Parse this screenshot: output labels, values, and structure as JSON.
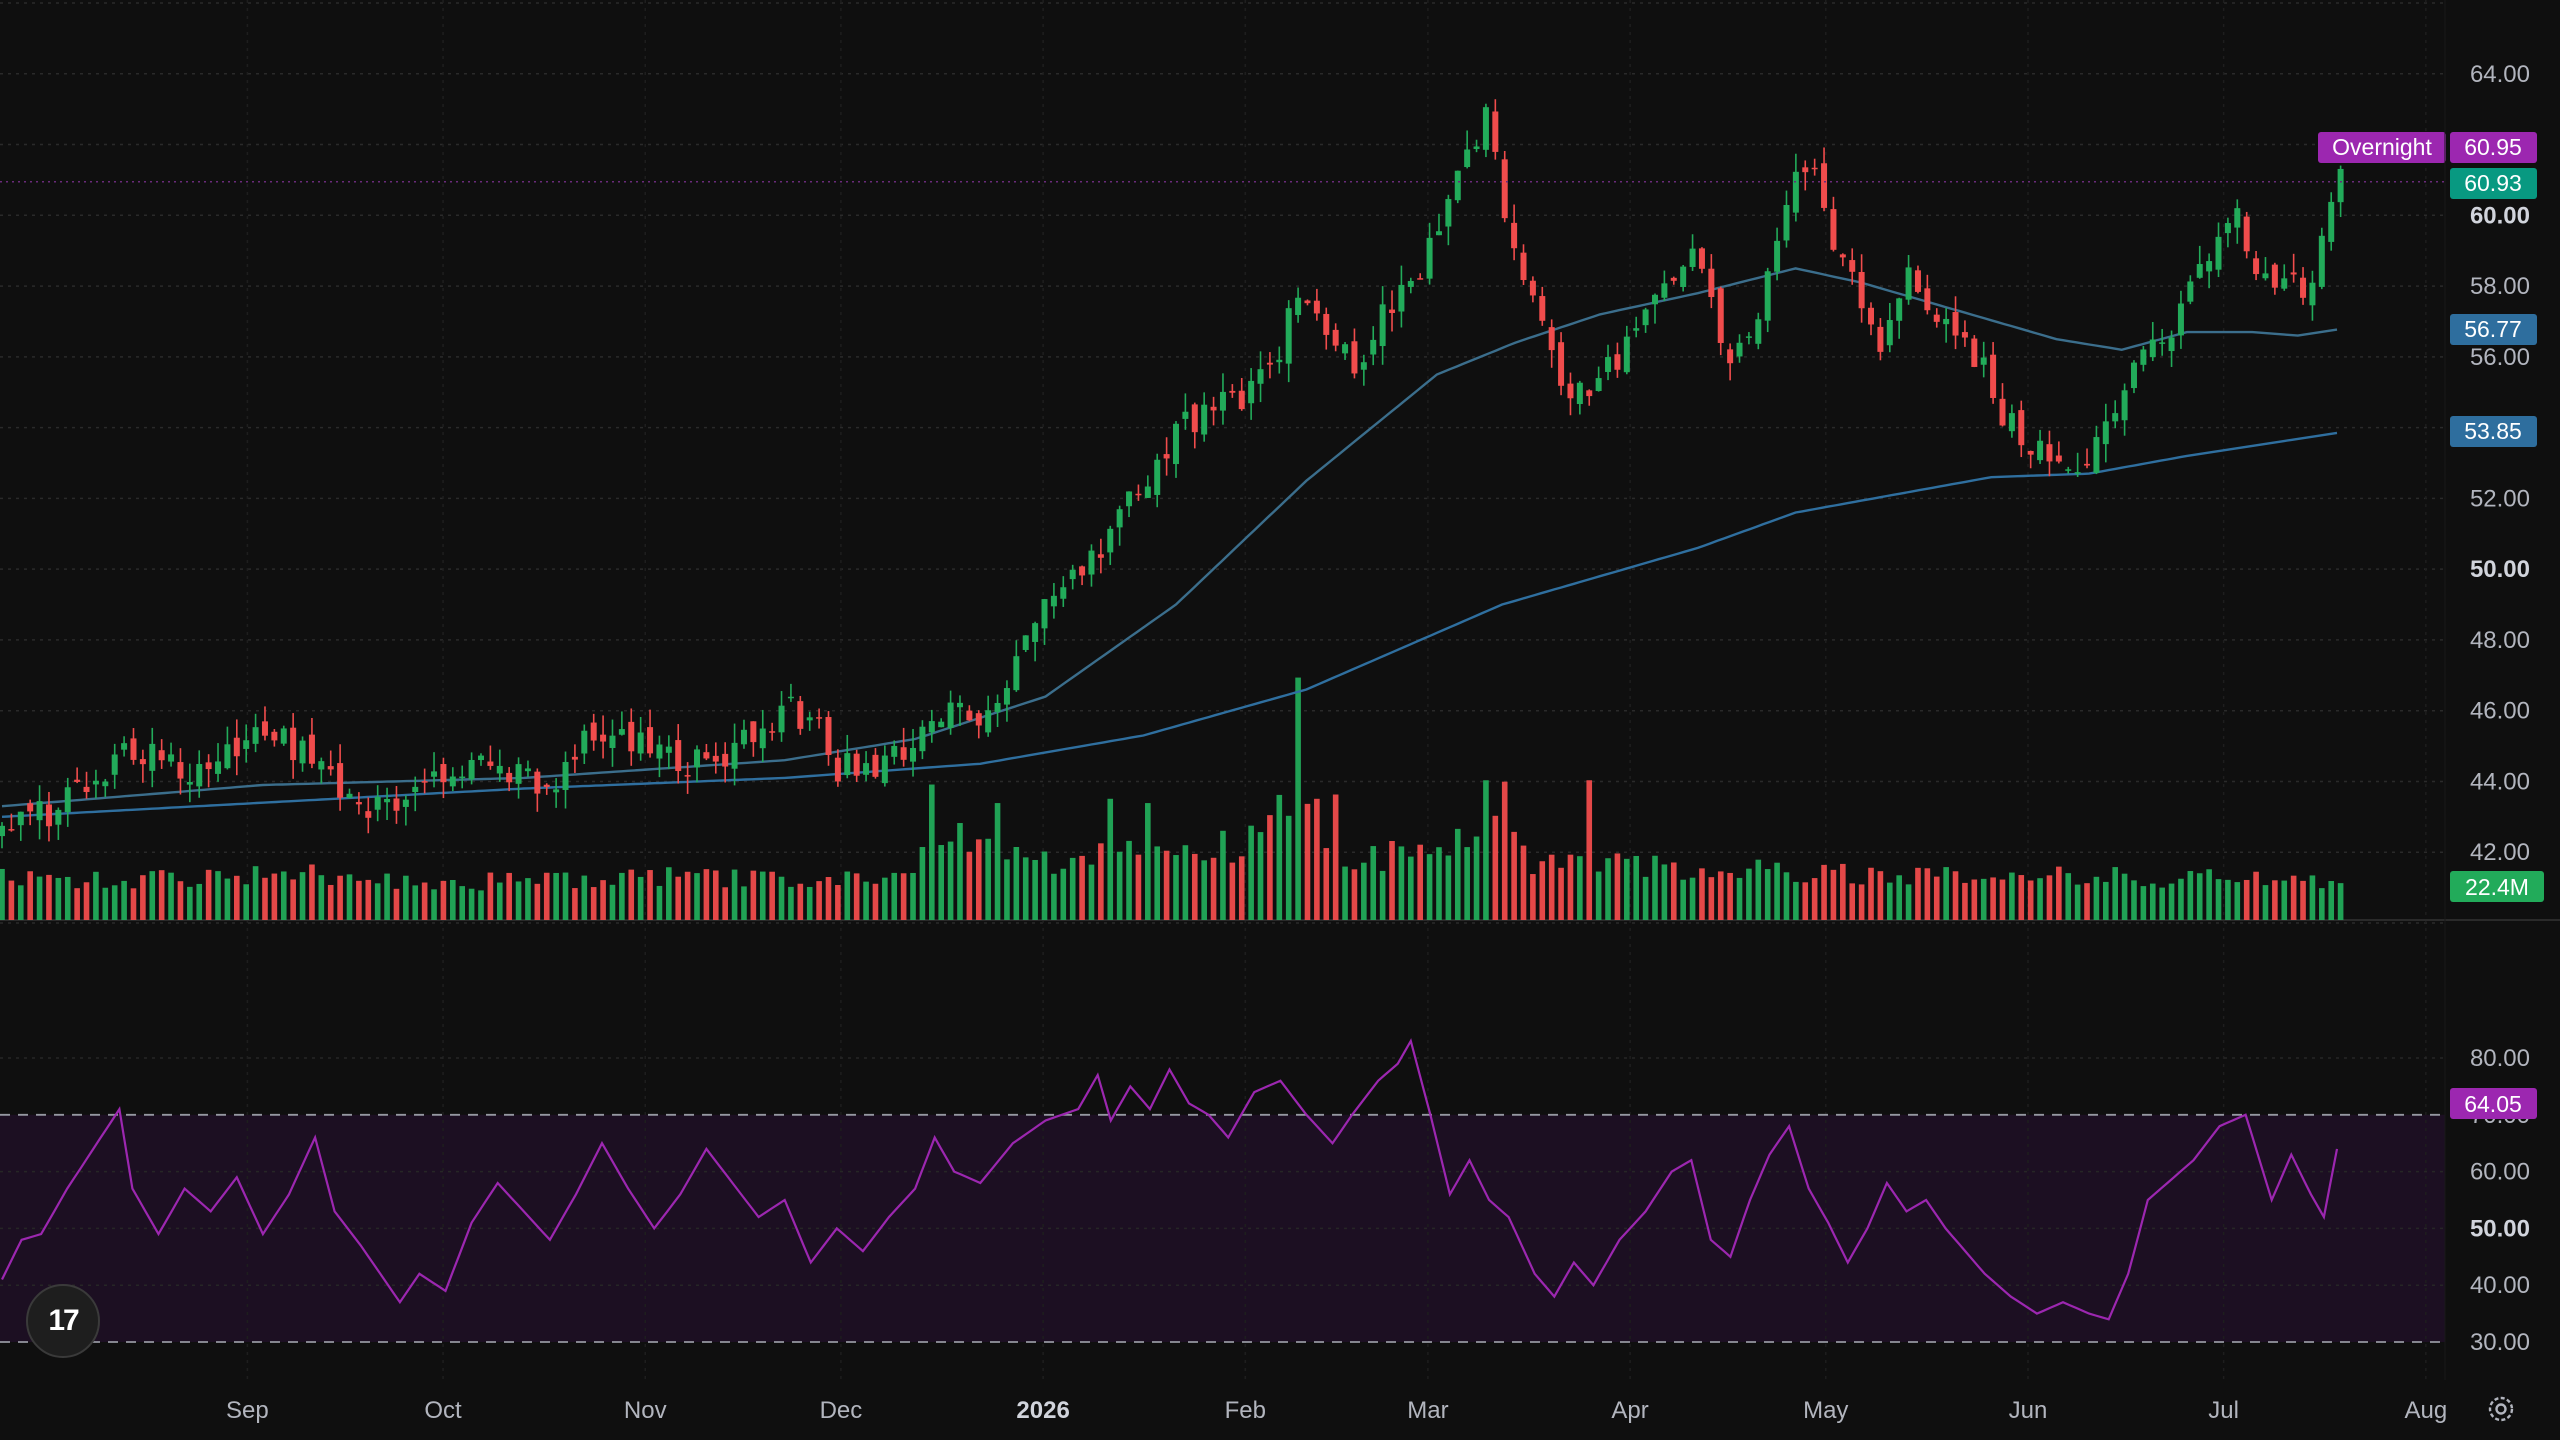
{
  "chart_data": {
    "type": "candlestick",
    "price_axis": {
      "ticks": [
        "42.00",
        "44.00",
        "46.00",
        "48.00",
        "50.00",
        "52.00",
        "54.00",
        "56.00",
        "58.00",
        "60.00",
        "62.00",
        "64.00"
      ],
      "bold_ticks": [
        "50.00",
        "60.00"
      ],
      "range": [
        40,
        66
      ]
    },
    "time_axis": {
      "labels": [
        {
          "label": "Sep",
          "day": 18
        },
        {
          "label": "Oct",
          "day": 48
        },
        {
          "label": "Nov",
          "day": 79
        },
        {
          "label": "Dec",
          "day": 109
        },
        {
          "label": "2026",
          "day": 140,
          "bold": true
        },
        {
          "label": "Feb",
          "day": 171
        },
        {
          "label": "Mar",
          "day": 199
        },
        {
          "label": "Apr",
          "day": 230
        },
        {
          "label": "May",
          "day": 260
        },
        {
          "label": "Jun",
          "day": 291
        },
        {
          "label": "Jul",
          "day": 321
        },
        {
          "label": "Aug",
          "day": 352
        }
      ],
      "day_range": [
        0,
        360
      ]
    },
    "price_path": [
      [
        0,
        42.6
      ],
      [
        10,
        43.4
      ],
      [
        20,
        45.0
      ],
      [
        30,
        44.3
      ],
      [
        40,
        45.5
      ],
      [
        50,
        44.5
      ],
      [
        55,
        43.0
      ],
      [
        62,
        43.5
      ],
      [
        70,
        44.4
      ],
      [
        78,
        44.3
      ],
      [
        84,
        43.6
      ],
      [
        90,
        45.6
      ],
      [
        100,
        45.0
      ],
      [
        108,
        44.4
      ],
      [
        115,
        45.3
      ],
      [
        120,
        46.1
      ],
      [
        125,
        45.7
      ],
      [
        128,
        44.4
      ],
      [
        134,
        44.3
      ],
      [
        140,
        45.0
      ],
      [
        143,
        45.6
      ],
      [
        145,
        46.5
      ],
      [
        150,
        45.9
      ],
      [
        155,
        47.0
      ],
      [
        160,
        48.8
      ],
      [
        165,
        50.0
      ],
      [
        170,
        51.0
      ],
      [
        175,
        52.5
      ],
      [
        180,
        54.0
      ],
      [
        184,
        54.3
      ],
      [
        190,
        54.8
      ],
      [
        195,
        55.5
      ],
      [
        198,
        57.4
      ],
      [
        204,
        56.6
      ],
      [
        208,
        55.6
      ],
      [
        212,
        57.3
      ],
      [
        218,
        58.7
      ],
      [
        224,
        61.5
      ],
      [
        228,
        62.8
      ],
      [
        230,
        60.8
      ],
      [
        232,
        58.6
      ],
      [
        235,
        57.2
      ],
      [
        238,
        55.8
      ],
      [
        240,
        54.5
      ],
      [
        244,
        55.2
      ],
      [
        248,
        56.0
      ],
      [
        252,
        57.3
      ],
      [
        256,
        58.2
      ],
      [
        260,
        59.0
      ],
      [
        262,
        58.0
      ],
      [
        265,
        55.7
      ],
      [
        270,
        57.5
      ],
      [
        275,
        60.8
      ],
      [
        278,
        61.0
      ],
      [
        282,
        58.7
      ],
      [
        285,
        57.4
      ],
      [
        288,
        56.4
      ],
      [
        292,
        58.2
      ],
      [
        296,
        57.5
      ],
      [
        300,
        56.5
      ],
      [
        304,
        55.5
      ],
      [
        308,
        54.0
      ],
      [
        312,
        53.5
      ],
      [
        316,
        53.2
      ],
      [
        320,
        53.0
      ],
      [
        324,
        54.8
      ],
      [
        330,
        56.4
      ],
      [
        334,
        57.2
      ],
      [
        338,
        58.8
      ],
      [
        342,
        60.3
      ],
      [
        346,
        58.0
      ],
      [
        350,
        58.5
      ],
      [
        354,
        57.5
      ],
      [
        356,
        59.8
      ],
      [
        358,
        60.93
      ]
    ],
    "sma_short": [
      [
        0,
        43.3
      ],
      [
        40,
        43.9
      ],
      [
        80,
        44.1
      ],
      [
        120,
        44.6
      ],
      [
        140,
        45.2
      ],
      [
        160,
        46.4
      ],
      [
        180,
        49.0
      ],
      [
        200,
        52.5
      ],
      [
        220,
        55.5
      ],
      [
        232,
        56.4
      ],
      [
        245,
        57.2
      ],
      [
        260,
        57.8
      ],
      [
        275,
        58.5
      ],
      [
        285,
        58.1
      ],
      [
        300,
        57.3
      ],
      [
        315,
        56.5
      ],
      [
        325,
        56.2
      ],
      [
        335,
        56.7
      ],
      [
        345,
        56.7
      ],
      [
        352,
        56.6
      ],
      [
        358,
        56.77
      ]
    ],
    "sma_long": [
      [
        0,
        43.0
      ],
      [
        40,
        43.4
      ],
      [
        80,
        43.8
      ],
      [
        120,
        44.1
      ],
      [
        150,
        44.5
      ],
      [
        175,
        45.3
      ],
      [
        200,
        46.6
      ],
      [
        215,
        47.8
      ],
      [
        230,
        49.0
      ],
      [
        245,
        49.8
      ],
      [
        260,
        50.6
      ],
      [
        275,
        51.6
      ],
      [
        290,
        52.1
      ],
      [
        305,
        52.6
      ],
      [
        320,
        52.7
      ],
      [
        335,
        53.2
      ],
      [
        358,
        53.85
      ]
    ],
    "volume_path": [
      [
        0,
        0.3
      ],
      [
        20,
        0.28
      ],
      [
        40,
        0.33
      ],
      [
        60,
        0.29
      ],
      [
        80,
        0.27
      ],
      [
        100,
        0.3
      ],
      [
        120,
        0.28
      ],
      [
        140,
        0.3
      ],
      [
        143,
        0.65
      ],
      [
        160,
        0.42
      ],
      [
        175,
        0.55
      ],
      [
        190,
        0.5
      ],
      [
        198,
        0.78
      ],
      [
        205,
        0.45
      ],
      [
        220,
        0.45
      ],
      [
        228,
        0.62
      ],
      [
        235,
        0.4
      ],
      [
        250,
        0.38
      ],
      [
        270,
        0.34
      ],
      [
        290,
        0.33
      ],
      [
        310,
        0.31
      ],
      [
        330,
        0.3
      ],
      [
        358,
        0.28
      ]
    ],
    "volume_spikes": [
      {
        "day": 143,
        "value": 0.95
      },
      {
        "day": 146,
        "value": 0.55
      },
      {
        "day": 198,
        "value": 1.0
      },
      {
        "day": 199,
        "value": 1.7
      },
      {
        "day": 201,
        "value": 0.85
      },
      {
        "day": 204,
        "value": 0.88
      },
      {
        "day": 228,
        "value": 0.98
      },
      {
        "day": 231,
        "value": 0.97
      },
      {
        "day": 244,
        "value": 0.98
      },
      {
        "day": 152,
        "value": 0.82
      },
      {
        "day": 170,
        "value": 0.85
      },
      {
        "day": 175,
        "value": 0.82
      }
    ],
    "last_volume_label": "22.4M",
    "rsi": {
      "ticks": [
        "30.00",
        "40.00",
        "50.00",
        "60.00",
        "70.00",
        "80.00"
      ],
      "bold_ticks": [
        "50.00"
      ],
      "range": [
        27,
        85
      ],
      "upper_band": 70,
      "lower_band": 30,
      "path": [
        [
          0,
          41
        ],
        [
          3,
          48
        ],
        [
          6,
          49
        ],
        [
          10,
          57
        ],
        [
          14,
          64
        ],
        [
          18,
          71
        ],
        [
          20,
          57
        ],
        [
          24,
          49
        ],
        [
          28,
          57
        ],
        [
          32,
          53
        ],
        [
          36,
          59
        ],
        [
          40,
          49
        ],
        [
          44,
          56
        ],
        [
          48,
          66
        ],
        [
          51,
          53
        ],
        [
          55,
          47
        ],
        [
          58,
          42
        ],
        [
          61,
          37
        ],
        [
          64,
          42
        ],
        [
          68,
          39
        ],
        [
          72,
          51
        ],
        [
          76,
          58
        ],
        [
          80,
          53
        ],
        [
          84,
          48
        ],
        [
          88,
          56
        ],
        [
          92,
          65
        ],
        [
          96,
          57
        ],
        [
          100,
          50
        ],
        [
          104,
          56
        ],
        [
          108,
          64
        ],
        [
          112,
          58
        ],
        [
          116,
          52
        ],
        [
          120,
          55
        ],
        [
          124,
          44
        ],
        [
          128,
          50
        ],
        [
          132,
          46
        ],
        [
          136,
          52
        ],
        [
          140,
          57
        ],
        [
          143,
          66
        ],
        [
          146,
          60
        ],
        [
          150,
          58
        ],
        [
          155,
          65
        ],
        [
          160,
          69
        ],
        [
          165,
          71
        ],
        [
          168,
          77
        ],
        [
          170,
          69
        ],
        [
          173,
          75
        ],
        [
          176,
          71
        ],
        [
          179,
          78
        ],
        [
          182,
          72
        ],
        [
          185,
          70
        ],
        [
          188,
          66
        ],
        [
          192,
          74
        ],
        [
          196,
          76
        ],
        [
          200,
          70
        ],
        [
          204,
          65
        ],
        [
          207,
          70
        ],
        [
          211,
          76
        ],
        [
          214,
          79
        ],
        [
          216,
          83
        ],
        [
          219,
          70
        ],
        [
          222,
          56
        ],
        [
          225,
          62
        ],
        [
          228,
          55
        ],
        [
          231,
          52
        ],
        [
          235,
          42
        ],
        [
          238,
          38
        ],
        [
          241,
          44
        ],
        [
          244,
          40
        ],
        [
          248,
          48
        ],
        [
          252,
          53
        ],
        [
          256,
          60
        ],
        [
          259,
          62
        ],
        [
          262,
          48
        ],
        [
          265,
          45
        ],
        [
          268,
          55
        ],
        [
          271,
          63
        ],
        [
          274,
          68
        ],
        [
          277,
          57
        ],
        [
          280,
          51
        ],
        [
          283,
          44
        ],
        [
          286,
          50
        ],
        [
          289,
          58
        ],
        [
          292,
          53
        ],
        [
          295,
          55
        ],
        [
          298,
          50
        ],
        [
          301,
          46
        ],
        [
          304,
          42
        ],
        [
          308,
          38
        ],
        [
          312,
          35
        ],
        [
          316,
          37
        ],
        [
          320,
          35
        ],
        [
          323,
          34
        ],
        [
          326,
          42
        ],
        [
          329,
          55
        ],
        [
          332,
          58
        ],
        [
          336,
          62
        ],
        [
          340,
          68
        ],
        [
          344,
          70
        ],
        [
          348,
          55
        ],
        [
          351,
          63
        ],
        [
          354,
          56
        ],
        [
          356,
          52
        ],
        [
          358,
          64
        ]
      ],
      "last_label": "64.05"
    },
    "price_tags": [
      {
        "label": "Overnight",
        "value": "60.95",
        "color": "#9c27b0"
      },
      {
        "value": "60.93",
        "color": "#089981"
      },
      {
        "value": "56.77",
        "color": "#2e6e9e"
      },
      {
        "value": "53.85",
        "color": "#2e6e9e"
      }
    ]
  },
  "logo": {
    "text": "17"
  }
}
